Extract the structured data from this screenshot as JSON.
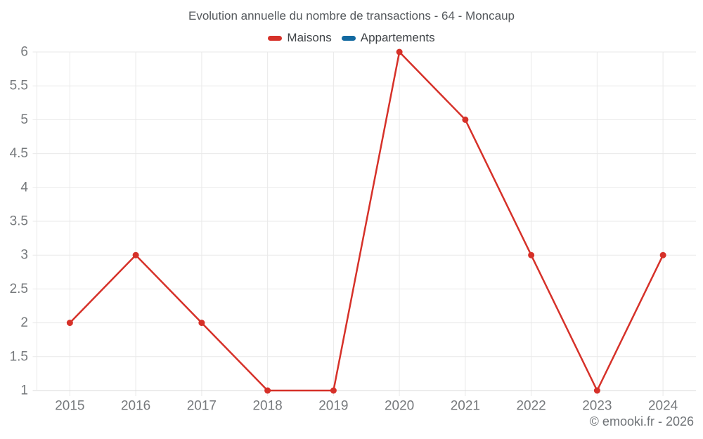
{
  "header": {
    "title": "Evolution annuelle du nombre de transactions - 64 - Moncaup"
  },
  "legend": {
    "items": [
      {
        "label": "Maisons",
        "color": "#d63129"
      },
      {
        "label": "Appartements",
        "color": "#1269a0"
      }
    ]
  },
  "footer": {
    "copyright": "© emooki.fr - 2026"
  },
  "chart_data": {
    "type": "line",
    "title": "Evolution annuelle du nombre de transactions - 64 - Moncaup",
    "categories": [
      "2015",
      "2016",
      "2017",
      "2018",
      "2019",
      "2020",
      "2021",
      "2022",
      "2023",
      "2024"
    ],
    "series": [
      {
        "name": "Maisons",
        "color": "#d63129",
        "marker": "circle",
        "values": [
          2,
          3,
          2,
          1,
          1,
          6,
          5,
          3,
          1,
          3
        ]
      },
      {
        "name": "Appartements",
        "color": "#1269a0",
        "marker": "circle",
        "values": []
      }
    ],
    "xlabel": "",
    "ylabel": "",
    "ylim": [
      1,
      6
    ],
    "ytick_step": 0.5,
    "ytick_labels": [
      "1",
      "1.5",
      "2",
      "2.5",
      "3",
      "3.5",
      "4",
      "4.5",
      "5",
      "5.5",
      "6"
    ],
    "grid": true,
    "legend_position": "top",
    "grid_color": "#e9e9e9",
    "baseline_color": "#d9d9d9",
    "axis_label_color": "#76797c"
  }
}
